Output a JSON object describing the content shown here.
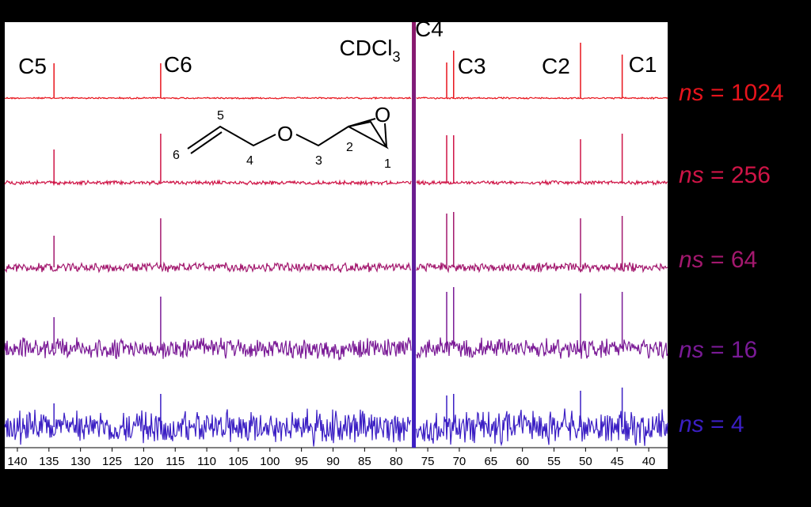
{
  "chart_data": {
    "type": "line",
    "title": "",
    "xlabel": "",
    "ylabel": "",
    "xlim": [
      142,
      37
    ],
    "x_ticks": [
      "140",
      "135",
      "130",
      "125",
      "120",
      "115",
      "110",
      "105",
      "100",
      "95",
      "90",
      "85",
      "80",
      "75",
      "70",
      "65",
      "60",
      "55",
      "50",
      "45",
      "40"
    ],
    "solvent_label": {
      "text": "CDCl",
      "sub": "3",
      "ppm": 77.2
    },
    "peaks": [
      {
        "label": "C5",
        "ppm": 134.2
      },
      {
        "label": "C6",
        "ppm": 117.3
      },
      {
        "label": "C4",
        "ppm": 72.0
      },
      {
        "label": "C3",
        "ppm": 70.9
      },
      {
        "label": "C2",
        "ppm": 50.8
      },
      {
        "label": "C1",
        "ppm": 44.2
      }
    ],
    "series": [
      {
        "ns_label": "ns",
        "ns_value": "= 1024",
        "color": "#e8141c",
        "noise": 0.03
      },
      {
        "ns_label": "ns",
        "ns_value": "= 256",
        "color": "#cf1446",
        "noise": 0.07
      },
      {
        "ns_label": "ns",
        "ns_value": "= 64",
        "color": "#a3186e",
        "noise": 0.17
      },
      {
        "ns_label": "ns",
        "ns_value": "= 16",
        "color": "#7a1a96",
        "noise": 0.38
      },
      {
        "ns_label": "ns",
        "ns_value": "= 4",
        "color": "#3b1fc4",
        "noise": 0.62
      }
    ],
    "structure_atom_labels": [
      "1",
      "2",
      "3",
      "4",
      "5",
      "6"
    ],
    "structure_oxygen": "O"
  }
}
